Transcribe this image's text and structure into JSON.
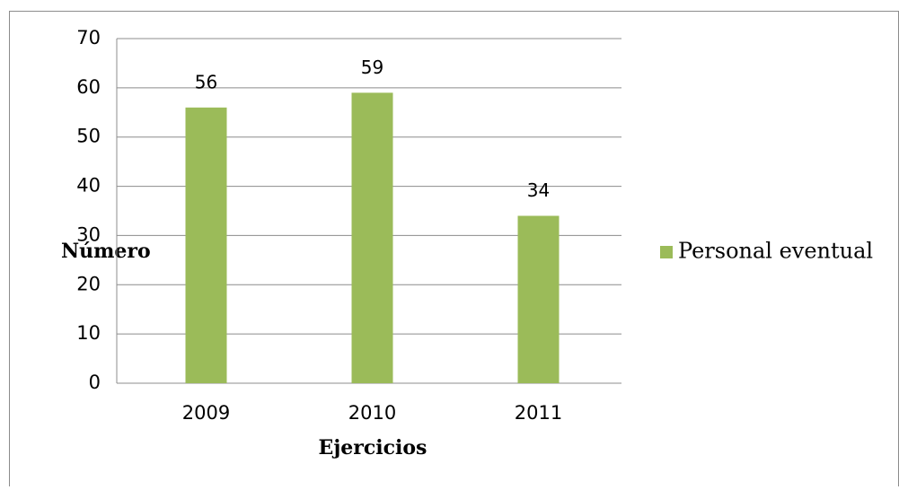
{
  "chart_data": {
    "type": "bar",
    "x_label": "Ejercicios",
    "y_label": "Número",
    "categories": [
      "2009",
      "2010",
      "2011"
    ],
    "series": [
      {
        "name": "Personal eventual",
        "color": "#9bbb59",
        "values": [
          56,
          59,
          34
        ]
      }
    ],
    "ylim": [
      0,
      70
    ],
    "yticks": [
      0,
      10,
      20,
      30,
      40,
      50,
      60,
      70
    ],
    "grid": true,
    "legend": "right"
  }
}
